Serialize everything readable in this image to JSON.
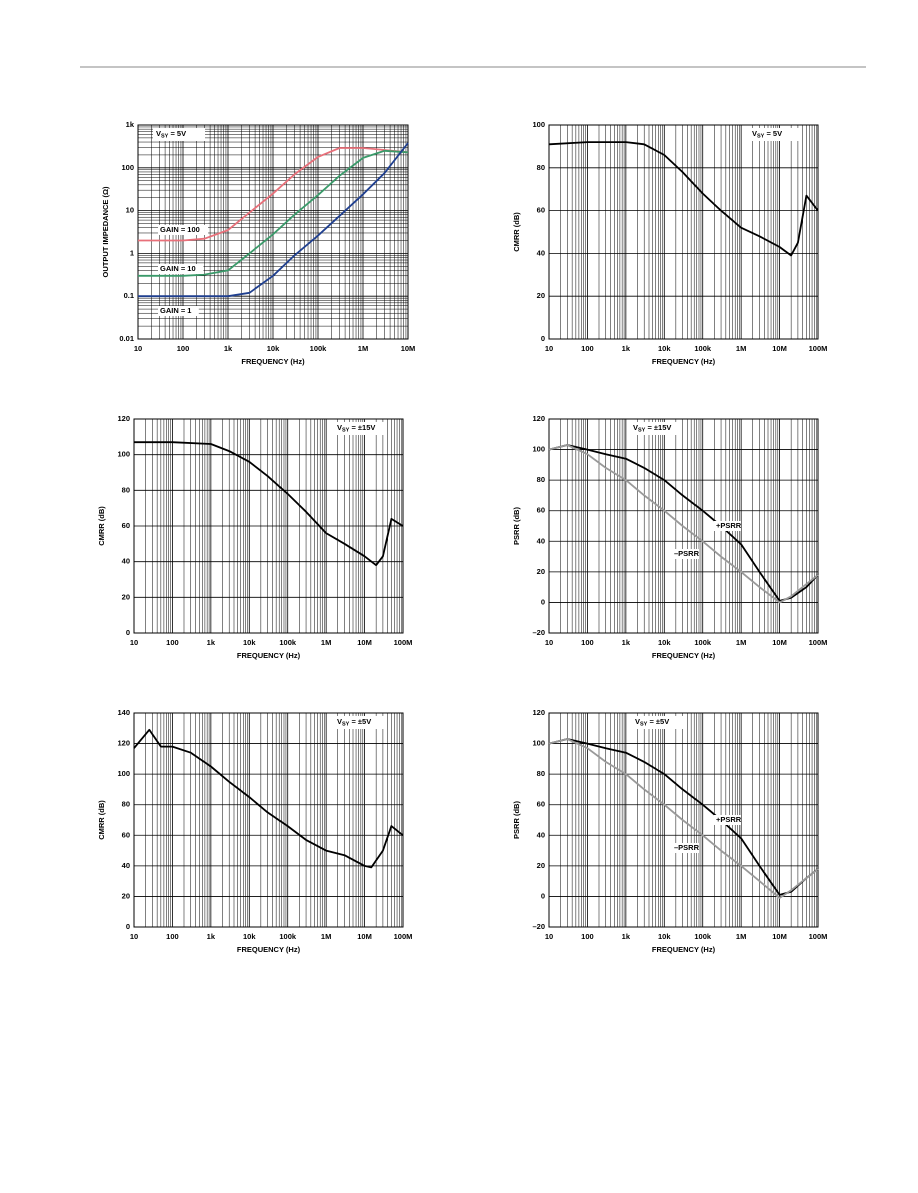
{
  "chart_data": [
    {
      "type": "line",
      "xlabel": "FREQUENCY (Hz)",
      "ylabel": "OUTPUT IMPEDANCE (Ω)",
      "annotation": [
        "V",
        "SY",
        " = 5V"
      ],
      "annotation_position": "top-left",
      "xscale": "log",
      "yscale": "log",
      "grid": true,
      "xlim": [
        10,
        10000000
      ],
      "ylim": [
        0.01,
        1000
      ],
      "xticks": [
        10,
        100,
        {
          "value": 1000,
          "label": "1k"
        },
        {
          "value": 10000,
          "label": "10k"
        },
        {
          "value": 100000,
          "label": "100k"
        },
        {
          "value": 1000000,
          "label": "1M"
        },
        {
          "value": 10000000,
          "label": "10M"
        }
      ],
      "yticks": [
        0.01,
        0.1,
        1,
        10,
        100,
        {
          "value": 1000,
          "label": "1k"
        }
      ],
      "x": [
        10,
        30,
        100,
        300,
        1000,
        3000,
        10000,
        30000,
        100000,
        300000,
        1000000,
        3000000,
        10000000
      ],
      "series": [
        {
          "name": "GAIN = 100",
          "color": "#e8707a",
          "values": [
            2,
            2,
            2,
            2.2,
            3.5,
            9,
            25,
            70,
            180,
            290,
            290,
            260,
            230
          ]
        },
        {
          "name": "GAIN = 10",
          "color": "#3a9a6a",
          "values": [
            0.3,
            0.3,
            0.3,
            0.32,
            0.4,
            1,
            2.8,
            8,
            23,
            65,
            170,
            250,
            230
          ]
        },
        {
          "name": "GAIN = 1",
          "color": "#1f3f8f",
          "values": [
            0.1,
            0.1,
            0.1,
            0.1,
            0.1,
            0.12,
            0.3,
            0.9,
            2.6,
            7.5,
            24,
            75,
            380
          ]
        }
      ]
    },
    {
      "type": "line",
      "xlabel": "FREQUENCY (Hz)",
      "ylabel": "CMRR (dB)",
      "annotation": [
        "V",
        "SY",
        " = 5V"
      ],
      "annotation_position": "top-right",
      "xscale": "log",
      "yscale": "linear",
      "grid": true,
      "xlim": [
        10,
        100000000
      ],
      "ylim": [
        0,
        100
      ],
      "xticks": [
        10,
        100,
        {
          "value": 1000,
          "label": "1k"
        },
        {
          "value": 10000,
          "label": "10k"
        },
        {
          "value": 100000,
          "label": "100k"
        },
        {
          "value": 1000000,
          "label": "1M"
        },
        {
          "value": 10000000,
          "label": "10M"
        },
        {
          "value": 100000000,
          "label": "100M"
        }
      ],
      "yticks": [
        0,
        20,
        40,
        60,
        80,
        100
      ],
      "x": [
        10,
        100,
        1000,
        3000,
        10000,
        30000,
        100000,
        300000,
        1000000,
        3000000,
        10000000,
        20000000,
        30000000,
        50000000,
        100000000
      ],
      "series": [
        {
          "name": "CMRR",
          "color": "#000000",
          "values": [
            91,
            92,
            92,
            91,
            86,
            78,
            68,
            60,
            52,
            48,
            43,
            39,
            45,
            67,
            60
          ]
        }
      ]
    },
    {
      "type": "line",
      "xlabel": "FREQUENCY (Hz)",
      "ylabel": "CMRR (dB)",
      "annotation": [
        "V",
        "SY",
        " = ±15V"
      ],
      "annotation_position": "top-right",
      "xscale": "log",
      "yscale": "linear",
      "grid": true,
      "xlim": [
        10,
        100000000
      ],
      "ylim": [
        0,
        120
      ],
      "xticks": [
        10,
        100,
        {
          "value": 1000,
          "label": "1k"
        },
        {
          "value": 10000,
          "label": "10k"
        },
        {
          "value": 100000,
          "label": "100k"
        },
        {
          "value": 1000000,
          "label": "1M"
        },
        {
          "value": 10000000,
          "label": "10M"
        },
        {
          "value": 100000000,
          "label": "100M"
        }
      ],
      "yticks": [
        0,
        20,
        40,
        60,
        80,
        100,
        120
      ],
      "x": [
        10,
        100,
        1000,
        3000,
        10000,
        30000,
        100000,
        300000,
        1000000,
        3000000,
        10000000,
        20000000,
        30000000,
        50000000,
        100000000
      ],
      "series": [
        {
          "name": "CMRR",
          "color": "#000000",
          "values": [
            107,
            107,
            106,
            102,
            96,
            88,
            78,
            68,
            56,
            50,
            43,
            38,
            43,
            64,
            60
          ]
        }
      ]
    },
    {
      "type": "line",
      "xlabel": "FREQUENCY (Hz)",
      "ylabel": "PSRR (dB)",
      "annotation": [
        "V",
        "SY",
        " = ±15V"
      ],
      "annotation_position": "top-right",
      "xscale": "log",
      "yscale": "linear",
      "grid": true,
      "xlim": [
        10,
        100000000
      ],
      "ylim": [
        -20,
        120
      ],
      "xticks": [
        10,
        100,
        {
          "value": 1000,
          "label": "1k"
        },
        {
          "value": 10000,
          "label": "10k"
        },
        {
          "value": 100000,
          "label": "100k"
        },
        {
          "value": 1000000,
          "label": "1M"
        },
        {
          "value": 10000000,
          "label": "10M"
        },
        {
          "value": 100000000,
          "label": "100M"
        }
      ],
      "yticks": [
        {
          "value": -20,
          "label": "–20"
        },
        0,
        20,
        40,
        60,
        80,
        100,
        120
      ],
      "x": [
        10,
        30,
        100,
        300,
        1000,
        3000,
        10000,
        30000,
        100000,
        300000,
        1000000,
        3000000,
        10000000,
        20000000,
        50000000,
        100000000
      ],
      "series": [
        {
          "name": "+PSRR",
          "color": "#000000",
          "values": [
            100,
            103,
            100,
            97,
            94,
            88,
            80,
            70,
            60,
            50,
            38,
            20,
            1,
            3,
            10,
            18
          ]
        },
        {
          "name": "–PSRR",
          "color": "#999999",
          "values": [
            100,
            103,
            97,
            88,
            80,
            70,
            60,
            50,
            40,
            30,
            20,
            10,
            0,
            4,
            12,
            18
          ]
        }
      ]
    },
    {
      "type": "line",
      "xlabel": "FREQUENCY (Hz)",
      "ylabel": "CMRR (dB)",
      "annotation": [
        "V",
        "SY",
        " = ±5V"
      ],
      "annotation_position": "top-right",
      "xscale": "log",
      "yscale": "linear",
      "grid": true,
      "xlim": [
        10,
        100000000
      ],
      "ylim": [
        0,
        140
      ],
      "xticks": [
        10,
        100,
        {
          "value": 1000,
          "label": "1k"
        },
        {
          "value": 10000,
          "label": "10k"
        },
        {
          "value": 100000,
          "label": "100k"
        },
        {
          "value": 1000000,
          "label": "1M"
        },
        {
          "value": 10000000,
          "label": "10M"
        },
        {
          "value": 100000000,
          "label": "100M"
        }
      ],
      "yticks": [
        0,
        20,
        40,
        60,
        80,
        100,
        120,
        140
      ],
      "x": [
        10,
        25,
        50,
        100,
        300,
        1000,
        3000,
        10000,
        30000,
        100000,
        300000,
        1000000,
        3000000,
        10000000,
        15000000,
        30000000,
        50000000,
        100000000
      ],
      "series": [
        {
          "name": "CMRR",
          "color": "#000000",
          "values": [
            117,
            129,
            118,
            118,
            114,
            105,
            95,
            85,
            75,
            66,
            57,
            50,
            47,
            40,
            39,
            50,
            66,
            60
          ]
        }
      ]
    },
    {
      "type": "line",
      "xlabel": "FREQUENCY (Hz)",
      "ylabel": "PSRR (dB)",
      "annotation": [
        "V",
        "SY",
        " = ±5V"
      ],
      "annotation_position": "top-right",
      "xscale": "log",
      "yscale": "linear",
      "grid": true,
      "xlim": [
        10,
        100000000
      ],
      "ylim": [
        -20,
        120
      ],
      "xticks": [
        10,
        100,
        {
          "value": 1000,
          "label": "1k"
        },
        {
          "value": 10000,
          "label": "10k"
        },
        {
          "value": 100000,
          "label": "100k"
        },
        {
          "value": 1000000,
          "label": "1M"
        },
        {
          "value": 10000000,
          "label": "10M"
        },
        {
          "value": 100000000,
          "label": "100M"
        }
      ],
      "yticks": [
        {
          "value": -20,
          "label": "–20"
        },
        0,
        20,
        40,
        60,
        80,
        100,
        120
      ],
      "x": [
        10,
        30,
        100,
        300,
        1000,
        3000,
        10000,
        30000,
        100000,
        300000,
        1000000,
        3000000,
        10000000,
        20000000,
        50000000,
        100000000
      ],
      "series": [
        {
          "name": "+PSRR",
          "color": "#000000",
          "values": [
            100,
            103,
            100,
            97,
            94,
            88,
            80,
            70,
            60,
            50,
            38,
            20,
            1,
            3,
            12,
            18
          ]
        },
        {
          "name": "–PSRR",
          "color": "#999999",
          "values": [
            100,
            103,
            97,
            88,
            80,
            70,
            60,
            50,
            40,
            30,
            20,
            10,
            -1,
            4,
            12,
            18
          ]
        }
      ]
    }
  ]
}
